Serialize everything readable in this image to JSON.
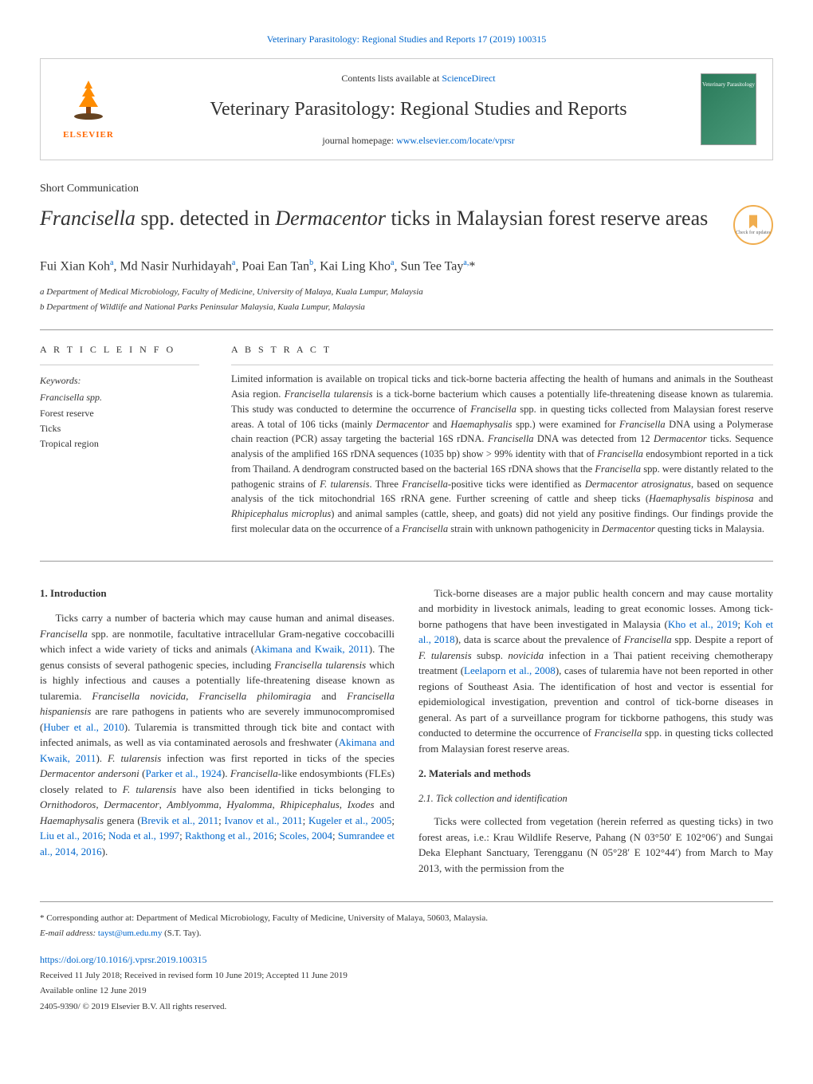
{
  "top_journal_link": "Veterinary Parasitology: Regional Studies and Reports 17 (2019) 100315",
  "header": {
    "publisher": "ELSEVIER",
    "contents_line": "Contents lists available at ",
    "contents_link": "ScienceDirect",
    "journal_name": "Veterinary Parasitology: Regional Studies and Reports",
    "homepage_prefix": "journal homepage: ",
    "homepage_url": "www.elsevier.com/locate/vprsr",
    "cover_text": "Veterinary Parasitology"
  },
  "article_type": "Short Communication",
  "title_parts": {
    "p1": "Francisella",
    "p2": " spp. detected in ",
    "p3": "Dermacentor",
    "p4": " ticks in Malaysian forest reserve areas"
  },
  "updates_label": "Check for updates",
  "authors_html": "Fui Xian Koh<sup>a</sup>, Md Nasir Nurhidayah<sup>a</sup>, Poai Ean Tan<sup>b</sup>, Kai Ling Kho<sup>a</sup>, Sun Tee Tay<sup>a,</sup>*",
  "affiliations": {
    "a": "a Department of Medical Microbiology, Faculty of Medicine, University of Malaya, Kuala Lumpur, Malaysia",
    "b": "b Department of Wildlife and National Parks Peninsular Malaysia, Kuala Lumpur, Malaysia"
  },
  "article_info_heading": "A R T I C L E   I N F O",
  "keywords_label": "Keywords:",
  "keywords": [
    "Francisella spp.",
    "Forest reserve",
    "Ticks",
    "Tropical region"
  ],
  "abstract_heading": "A B S T R A C T",
  "abstract": "Limited information is available on tropical ticks and tick-borne bacteria affecting the health of humans and animals in the Southeast Asia region. Francisella tularensis is a tick-borne bacterium which causes a potentially life-threatening disease known as tularemia. This study was conducted to determine the occurrence of Francisella spp. in questing ticks collected from Malaysian forest reserve areas. A total of 106 ticks (mainly Dermacentor and Haemaphysalis spp.) were examined for Francisella DNA using a Polymerase chain reaction (PCR) assay targeting the bacterial 16S rDNA. Francisella DNA was detected from 12 Dermacentor ticks. Sequence analysis of the amplified 16S rDNA sequences (1035 bp) show > 99% identity with that of Francisella endosymbiont reported in a tick from Thailand. A dendrogram constructed based on the bacterial 16S rDNA shows that the Francisella spp. were distantly related to the pathogenic strains of F. tularensis. Three Francisella-positive ticks were identified as Dermacentor atrosignatus, based on sequence analysis of the tick mitochondrial 16S rRNA gene. Further screening of cattle and sheep ticks (Haemaphysalis bispinosa and Rhipicephalus microplus) and animal samples (cattle, sheep, and goats) did not yield any positive findings. Our findings provide the first molecular data on the occurrence of a Francisella strain with unknown pathogenicity in Dermacentor questing ticks in Malaysia.",
  "sections": {
    "intro_heading": "1. Introduction",
    "intro_p1": "Ticks carry a number of bacteria which may cause human and animal diseases. Francisella spp. are nonmotile, facultative intracellular Gram-negative coccobacilli which infect a wide variety of ticks and animals (Akimana and Kwaik, 2011). The genus consists of several pathogenic species, including Francisella tularensis which is highly infectious and causes a potentially life-threatening disease known as tularemia. Francisella novicida, Francisella philomiragia and Francisella hispaniensis are rare pathogens in patients who are severely immunocompromised (Huber et al., 2010). Tularemia is transmitted through tick bite and contact with infected animals, as well as via contaminated aerosols and freshwater (Akimana and Kwaik, 2011). F. tularensis infection was first reported in ticks of the species Dermacentor andersoni (Parker et al., 1924). Francisella-like endosymbionts (FLEs) closely related to F. tularensis have also been identified in ticks belonging to Ornithodoros, Dermacentor, Amblyomma, Hyalomma, Rhipicephalus, Ixodes and Haemaphysalis genera (Brevik et al., 2011; Ivanov et al., 2011; Kugeler et al., 2005; Liu et al., 2016; Noda et al., 1997; Rakthong et al., 2016; Scoles, 2004; Sumrandee et al., 2014, 2016).",
    "intro_p2": "Tick-borne diseases are a major public health concern and may cause mortality and morbidity in livestock animals, leading to great economic losses. Among tick-borne pathogens that have been investigated in Malaysia (Kho et al., 2019; Koh et al., 2018), data is scarce about the prevalence of Francisella spp. Despite a report of F. tularensis subsp. novicida infection in a Thai patient receiving chemotherapy treatment (Leelaporn et al., 2008), cases of tularemia have not been reported in other regions of Southeast Asia. The identification of host and vector is essential for epidemiological investigation, prevention and control of tick-borne diseases in general. As part of a surveillance program for tickborne pathogens, this study was conducted to determine the occurrence of Francisella spp. in questing ticks collected from Malaysian forest reserve areas.",
    "methods_heading": "2. Materials and methods",
    "methods_sub": "2.1. Tick collection and identification",
    "methods_p1": "Ticks were collected from vegetation (herein referred as questing ticks) in two forest areas, i.e.: Krau Wildlife Reserve, Pahang (N 03°50′ E 102°06′) and Sungai Deka Elephant Sanctuary, Terengganu (N 05°28′ E 102°44′) from March to May 2013, with the permission from the"
  },
  "footer": {
    "corresponding": "* Corresponding author at: Department of Medical Microbiology, Faculty of Medicine, University of Malaya, 50603, Malaysia.",
    "email_label": "E-mail address: ",
    "email": "tayst@um.edu.my",
    "email_suffix": " (S.T. Tay).",
    "doi": "https://doi.org/10.1016/j.vprsr.2019.100315",
    "received": "Received 11 July 2018; Received in revised form 10 June 2019; Accepted 11 June 2019",
    "available": "Available online 12 June 2019",
    "copyright": "2405-9390/ © 2019 Elsevier B.V. All rights reserved."
  }
}
